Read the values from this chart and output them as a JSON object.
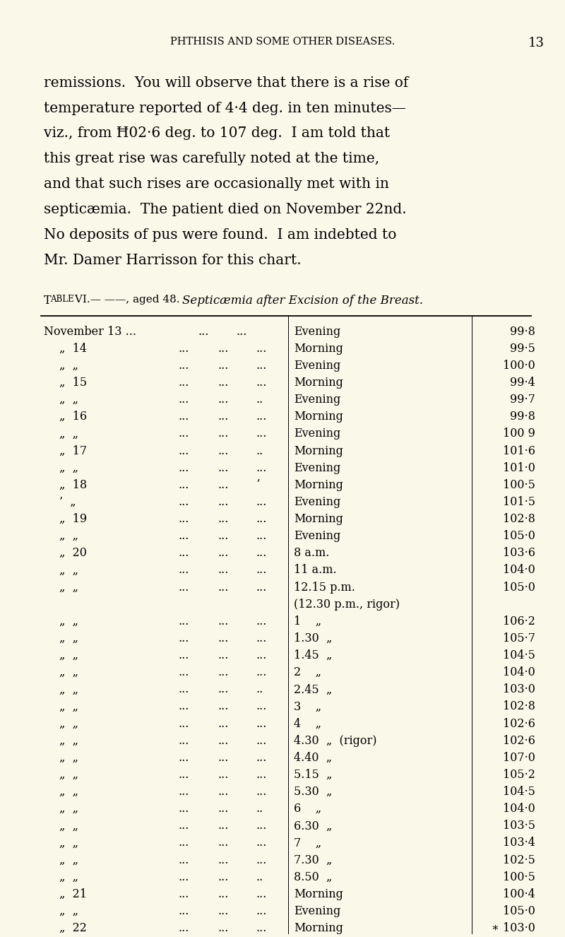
{
  "background_color": "#faf8e8",
  "page_header": "PHTHISIS AND SOME OTHER DISEASES.",
  "page_number": "13",
  "body_text": [
    "remissions.  You will observe that there is a rise of",
    "temperature reported of 4·4 deg. in ten minutes—",
    "viz., from Ħ02·6 deg. to 107 deg.  I am told that",
    "this great rise was carefully noted at the time,",
    "and that such rises are occasionally met with in",
    "septicæmia.  The patient died on November 22nd.",
    "No deposits of pus were found.  I am indebted to",
    "Mr. Damer Harrisson for this chart."
  ],
  "table_label": "Table VI.— ——, aged 48.",
  "table_subtitle": "Septicæmia after Excision of the Breast.",
  "rows": [
    [
      "November 13 ...",
      "...",
      "...",
      "Evening",
      "",
      "99·8"
    ],
    [
      "„  14 ...",
      "...",
      "...",
      "Morning",
      "",
      "99·5"
    ],
    [
      "„  „  ...",
      "...",
      "...",
      "Evening",
      "",
      "100·0"
    ],
    [
      "„  15 ...",
      "...",
      "...",
      "Morning",
      "",
      "99·4"
    ],
    [
      "„  „  ...",
      "...",
      "..",
      "Evening",
      "",
      "99·7"
    ],
    [
      "„  16 ...",
      "...",
      "...",
      "Morning",
      "",
      "99·8"
    ],
    [
      "„  „  ...",
      "...",
      "...",
      "Evening",
      "",
      "100 9"
    ],
    [
      "„  17 ...",
      "...",
      "..",
      "Morning",
      "",
      "101·6"
    ],
    [
      "„  „  ...",
      "...",
      "...",
      "Evening",
      "",
      "101·0"
    ],
    [
      "„  18 ...",
      "...",
      "ʼ",
      "Morning",
      "",
      "100·5"
    ],
    [
      "’  „  ...",
      "...",
      "...",
      "Evening",
      "",
      "101·5"
    ],
    [
      "„  19 ...",
      "...",
      "...",
      "Morning",
      "",
      "102·8"
    ],
    [
      "„  „  ...",
      "...",
      "...",
      "Evening",
      "",
      "105·0"
    ],
    [
      "„  20 ...",
      "...",
      "...",
      "8 a.m.",
      "",
      "103·6"
    ],
    [
      "„  „  ...",
      "...",
      "...",
      "11 a.m.",
      "",
      "104·0"
    ],
    [
      "„  „  ...",
      "...",
      "...",
      "12.15 p.m.",
      "",
      "105·0"
    ],
    [
      "",
      "",
      "",
      "(12.30 p.m., rigor)",
      "",
      ""
    ],
    [
      "„  „  ...",
      "...",
      "...",
      "1    „",
      "",
      "106·2"
    ],
    [
      "„  „  ...",
      "...",
      "...",
      "1.30  „",
      "",
      "105·7"
    ],
    [
      "„  „  ...",
      "...",
      "...",
      "1.45  „",
      "",
      "104·5"
    ],
    [
      "„  „  ...",
      "...",
      "...",
      "2    „",
      "",
      "104·0"
    ],
    [
      "„  „  ...",
      "...",
      "..",
      "2.45  „",
      "",
      "103·0"
    ],
    [
      "„  „  ...",
      "...",
      "...",
      "3    „",
      "",
      "102·8"
    ],
    [
      "„  „  ...",
      "...",
      "...",
      "4    „",
      "",
      "102·6"
    ],
    [
      "„  „  ...",
      "...",
      "...",
      "4.30  „  (rigor)",
      "",
      "102·6"
    ],
    [
      "„  „  ...",
      "...",
      "...",
      "4.40  „",
      "",
      "107·0"
    ],
    [
      "„  „  ...",
      "...",
      "...",
      "5.15  „",
      "",
      "105·2"
    ],
    [
      "„  „  ...",
      "...",
      "...",
      "5.30  „",
      "",
      "104·5"
    ],
    [
      "„  „  ...",
      "...",
      "..",
      "6    „",
      "",
      "104·0"
    ],
    [
      "„  „  ...",
      "...",
      "...",
      "6.30  „",
      "",
      "103·5"
    ],
    [
      "„  „  ...",
      "...",
      "...",
      "7    „",
      "",
      "103·4"
    ],
    [
      "„  „  ...",
      "...",
      "...",
      "7.30  „",
      "",
      "102·5"
    ],
    [
      "„  „  ...",
      "...",
      "..",
      "8.50  „",
      "",
      "100·5"
    ],
    [
      "„  21 ...",
      "...",
      "...",
      "Morning",
      "",
      "100·4"
    ],
    [
      "„  „  ...",
      "...",
      "...",
      "Evening",
      "",
      "105·0"
    ],
    [
      "„  22 ...",
      "...",
      "...",
      "Morning",
      "",
      "∗ 103·0"
    ]
  ]
}
